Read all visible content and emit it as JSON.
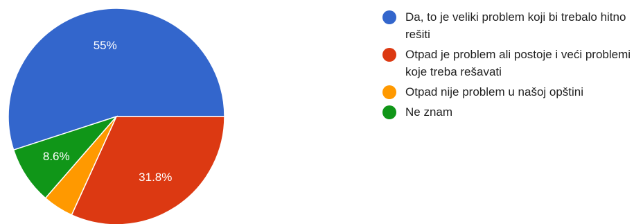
{
  "chart_data": {
    "type": "pie",
    "slices": [
      {
        "label": "Da, to je veliki problem koji bi trebalo hitno rešiti",
        "value": 55.0,
        "display": "55%",
        "color": "#3366cc"
      },
      {
        "label": "Otpad je problem ali postoje i veći problemi koje treba rešavati",
        "value": 31.8,
        "display": "31.8%",
        "color": "#dc3912"
      },
      {
        "label": "Otpad nije problem u našoj opštini",
        "value": 4.6,
        "display": "",
        "color": "#ff9900"
      },
      {
        "label": "Ne znam",
        "value": 8.6,
        "display": "8.6%",
        "color": "#109618"
      }
    ],
    "legend_position": "right"
  }
}
